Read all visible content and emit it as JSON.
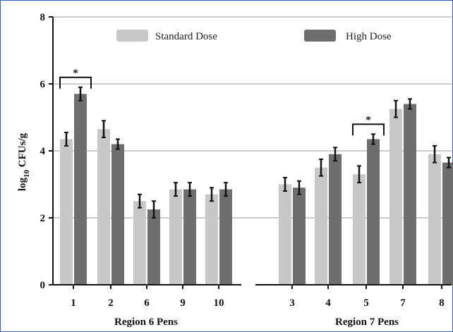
{
  "chart_data": {
    "type": "bar",
    "ylabel_main": "log",
    "ylabel_sub": "10",
    "ylabel_rest": " CFUs/g",
    "ylim": [
      0,
      8
    ],
    "yticks": [
      "0",
      "2",
      "4",
      "6",
      "8"
    ],
    "grid": "horizontal",
    "legend_position": "top",
    "groups": [
      {
        "label": "Region 6 Pens",
        "categories": [
          "1",
          "2",
          "6",
          "9",
          "10"
        ]
      },
      {
        "label": "Region 7 Pens",
        "categories": [
          "3",
          "4",
          "5",
          "7",
          "8"
        ]
      }
    ],
    "series": [
      {
        "name": "Standard Dose",
        "color": "#c8c8c8",
        "values": [
          4.35,
          4.65,
          2.5,
          2.85,
          2.7,
          3.0,
          3.5,
          3.3,
          5.25,
          3.9
        ],
        "errors": [
          0.2,
          0.25,
          0.2,
          0.2,
          0.2,
          0.2,
          0.25,
          0.25,
          0.25,
          0.25
        ]
      },
      {
        "name": "High Dose",
        "color": "#6e6e6e",
        "values": [
          5.7,
          4.2,
          2.25,
          2.85,
          2.85,
          2.9,
          3.9,
          4.35,
          5.4,
          3.65
        ],
        "errors": [
          0.2,
          0.15,
          0.25,
          0.2,
          0.2,
          0.2,
          0.2,
          0.15,
          0.15,
          0.15
        ]
      }
    ],
    "annotations": [
      {
        "text": "*",
        "category_index": 0
      },
      {
        "text": "*",
        "category_index": 7
      }
    ]
  }
}
